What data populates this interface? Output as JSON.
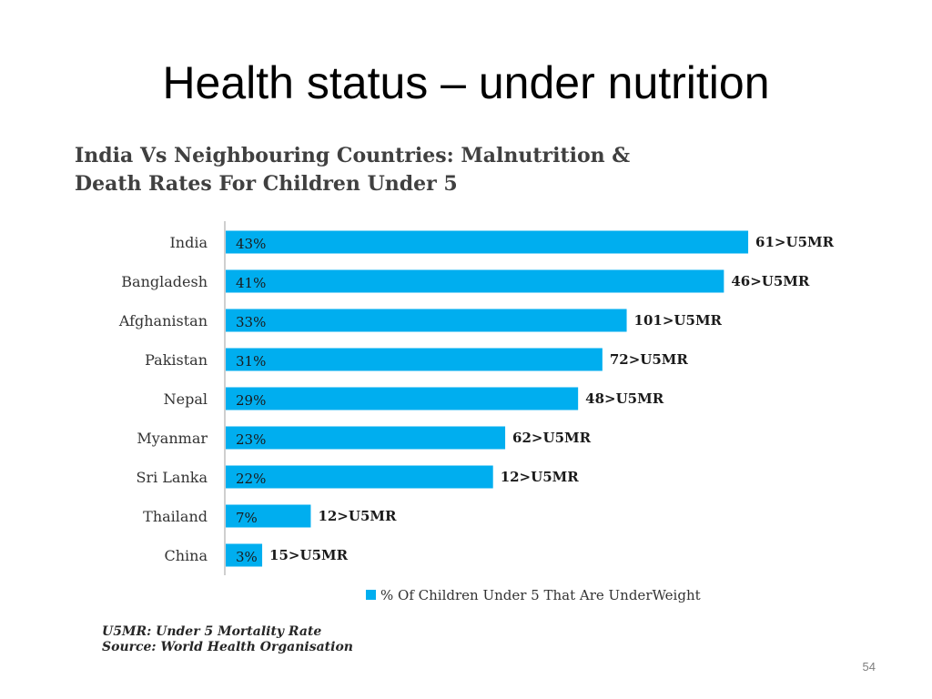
{
  "slide": {
    "title": "Health status – under nutrition",
    "page_number": "54"
  },
  "chart_data": {
    "type": "bar",
    "orientation": "horizontal",
    "title_lines": [
      "India Vs Neighbouring Countries: Malnutrition &",
      "Death Rates For Children Under 5"
    ],
    "categories": [
      "India",
      "Bangladesh",
      "Afghanistan",
      "Pakistan",
      "Nepal",
      "Myanmar",
      "Sri Lanka",
      "Thailand",
      "China"
    ],
    "series": [
      {
        "name": "% Of Children Under 5 That Are UnderWeight",
        "values": [
          43,
          41,
          33,
          31,
          29,
          23,
          22,
          7,
          3
        ],
        "value_labels": [
          "43%",
          "41%",
          "33%",
          "31%",
          "29%",
          "23%",
          "22%",
          "7%",
          "3%"
        ]
      }
    ],
    "bar_end_labels": [
      "61>U5MR",
      "46>U5MR",
      "101>U5MR",
      "72>U5MR",
      "48>U5MR",
      "62>U5MR",
      "12>U5MR",
      "12>U5MR",
      "15>U5MR"
    ],
    "xlim": [
      0,
      45
    ],
    "grid": false,
    "legend_position": "bottom",
    "bar_color": "#00aeef"
  },
  "footnotes": {
    "line1": "U5MR: Under 5 Mortality Rate",
    "line2": "Source: World Health Organisation"
  }
}
